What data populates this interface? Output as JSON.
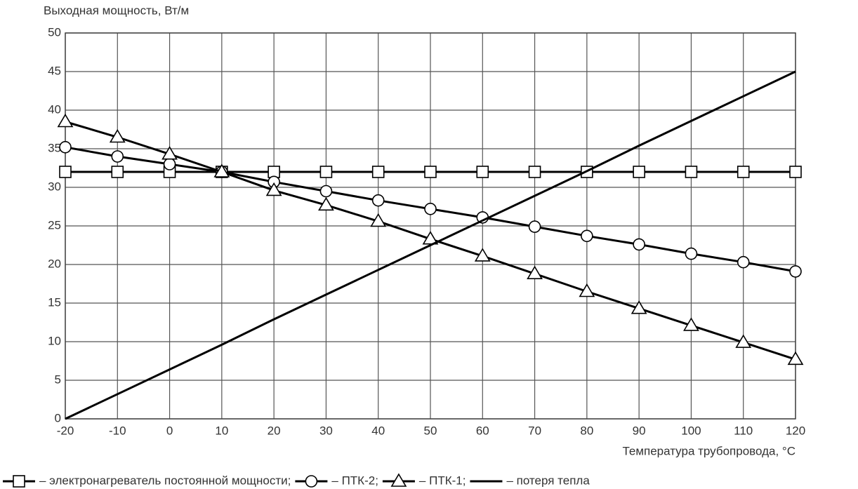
{
  "chart_data": {
    "type": "line",
    "y_label": "Выходная мощность, Вт/м",
    "x_label": "Температура трубопровода, °C",
    "x": [
      -20,
      -10,
      0,
      10,
      20,
      30,
      40,
      50,
      60,
      70,
      80,
      90,
      100,
      110,
      120
    ],
    "series": [
      {
        "name": "– электронагреватель постоянной мощности;",
        "color": "#000000",
        "marker": "square",
        "values": [
          32,
          32,
          32,
          32,
          32,
          32,
          32,
          32,
          32,
          32,
          32,
          32,
          32,
          32,
          32
        ]
      },
      {
        "name": "– ПТК-2;",
        "color": "#000000",
        "marker": "circle",
        "values": [
          35.2,
          34,
          33,
          32,
          30.7,
          29.5,
          28.3,
          27.2,
          26.1,
          24.9,
          23.7,
          22.6,
          21.4,
          20.3,
          19.1
        ]
      },
      {
        "name": "– ПТК-1;",
        "color": "#000000",
        "marker": "triangle",
        "values": [
          38.5,
          36.5,
          34.3,
          32,
          29.6,
          27.7,
          25.6,
          23.3,
          21.1,
          18.8,
          16.5,
          14.3,
          12.1,
          9.9,
          7.7
        ]
      },
      {
        "name": "– потеря тепла",
        "color": "#000000",
        "marker": "none",
        "values": [
          0,
          3.2,
          6.4,
          9.6,
          12.9,
          16.1,
          19.3,
          22.5,
          25.7,
          28.9,
          32.1,
          35.4,
          38.6,
          41.8,
          45
        ]
      }
    ],
    "xlim": [
      -20,
      120
    ],
    "xticks": [
      -20,
      -10,
      0,
      10,
      20,
      30,
      40,
      50,
      60,
      70,
      80,
      90,
      100,
      110,
      120
    ],
    "ylim": [
      0,
      50
    ],
    "yticks": [
      0,
      5,
      10,
      15,
      20,
      25,
      30,
      35,
      40,
      45,
      50
    ],
    "grid": true,
    "legend": "bottom"
  }
}
